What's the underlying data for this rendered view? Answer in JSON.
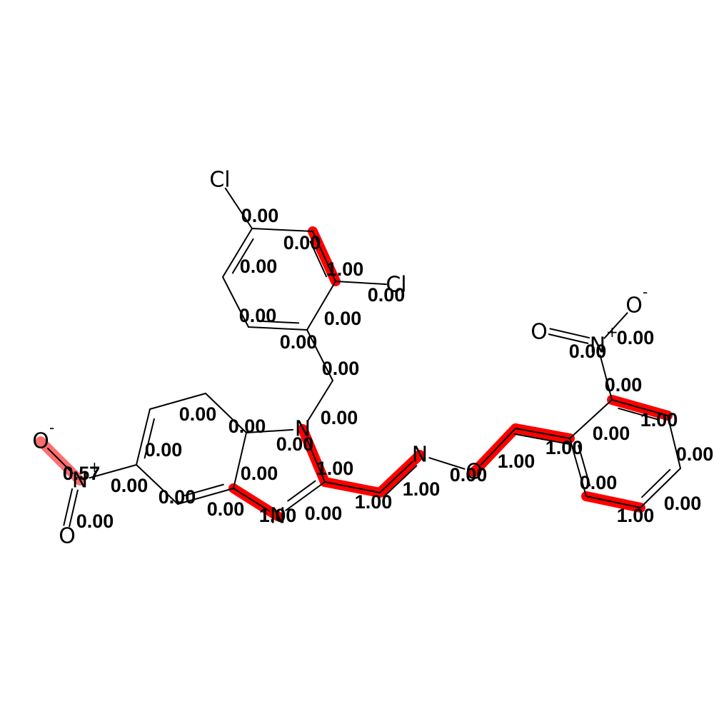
{
  "atoms": [
    {
      "id": "Cl1",
      "label": "Cl"
    },
    {
      "id": "C1",
      "label": ""
    },
    {
      "id": "C2",
      "label": ""
    },
    {
      "id": "C3",
      "label": ""
    },
    {
      "id": "Cl2",
      "label": "Cl"
    },
    {
      "id": "C4",
      "label": ""
    },
    {
      "id": "C5",
      "label": ""
    },
    {
      "id": "C6",
      "label": ""
    },
    {
      "id": "CH2",
      "label": ""
    },
    {
      "id": "N1",
      "label": "N"
    },
    {
      "id": "C7a",
      "label": ""
    },
    {
      "id": "C7",
      "label": ""
    },
    {
      "id": "C6b",
      "label": ""
    },
    {
      "id": "C5b",
      "label": ""
    },
    {
      "id": "C4b",
      "label": ""
    },
    {
      "id": "C3a",
      "label": ""
    },
    {
      "id": "N3",
      "label": "N"
    },
    {
      "id": "C2b",
      "label": ""
    },
    {
      "id": "CHb",
      "label": ""
    },
    {
      "id": "Nox",
      "label": "N"
    },
    {
      "id": "Oox",
      "label": "O"
    },
    {
      "id": "Cv1",
      "label": ""
    },
    {
      "id": "Cv2",
      "label": ""
    },
    {
      "id": "Ar1",
      "label": ""
    },
    {
      "id": "Ar2",
      "label": ""
    },
    {
      "id": "Ar3",
      "label": ""
    },
    {
      "id": "Ar4",
      "label": ""
    },
    {
      "id": "Ar5",
      "label": ""
    },
    {
      "id": "Ar6",
      "label": ""
    },
    {
      "id": "N2p",
      "label": "N",
      "charge": "+"
    },
    {
      "id": "O2a",
      "label": "O"
    },
    {
      "id": "O2b",
      "label": "O",
      "charge": "-"
    },
    {
      "id": "N5p",
      "label": "N",
      "charge": "+"
    },
    {
      "id": "O5a",
      "label": "O",
      "charge": "-"
    },
    {
      "id": "O5b",
      "label": "O"
    }
  ],
  "bonds": [
    {
      "a": "Cl1",
      "b": "C1",
      "order": 1,
      "weight": "0.00"
    },
    {
      "a": "C1",
      "b": "C2",
      "order": 1,
      "weight": "0.00"
    },
    {
      "a": "C2",
      "b": "C3",
      "order": 2,
      "weight": "1.00"
    },
    {
      "a": "C3",
      "b": "Cl2",
      "order": 1,
      "weight": "0.00"
    },
    {
      "a": "C3",
      "b": "C4",
      "order": 1,
      "weight": "0.00"
    },
    {
      "a": "C4",
      "b": "C5",
      "order": 2,
      "weight": "0.00"
    },
    {
      "a": "C5",
      "b": "C6",
      "order": 1,
      "weight": "0.00"
    },
    {
      "a": "C6",
      "b": "C1",
      "order": 2,
      "weight": "0.00"
    },
    {
      "a": "C4",
      "b": "CH2",
      "order": 1,
      "weight": "0.00"
    },
    {
      "a": "CH2",
      "b": "N1",
      "order": 1,
      "weight": "0.00"
    },
    {
      "a": "N1",
      "b": "C7a",
      "order": 1,
      "weight": "0.00"
    },
    {
      "a": "C7a",
      "b": "C7",
      "order": 1,
      "weight": "0.00"
    },
    {
      "a": "C7",
      "b": "C6b",
      "order": 1,
      "weight": "0.00"
    },
    {
      "a": "C6b",
      "b": "C5b",
      "order": 2,
      "weight": "0.00"
    },
    {
      "a": "C5b",
      "b": "C4b",
      "order": 1,
      "weight": "0.00"
    },
    {
      "a": "C4b",
      "b": "C3a",
      "order": 2,
      "weight": "0.00"
    },
    {
      "a": "C3a",
      "b": "C7a",
      "order": 1,
      "weight": "0.00"
    },
    {
      "a": "C3a",
      "b": "N3",
      "order": 1,
      "weight": "1.00"
    },
    {
      "a": "N3",
      "b": "C2b",
      "order": 2,
      "weight": "0.00"
    },
    {
      "a": "C2b",
      "b": "N1",
      "order": 1,
      "weight": "1.00"
    },
    {
      "a": "C2b",
      "b": "CHb",
      "order": 1,
      "weight": "1.00"
    },
    {
      "a": "CHb",
      "b": "Nox",
      "order": 2,
      "weight": "1.00"
    },
    {
      "a": "Nox",
      "b": "Oox",
      "order": 1,
      "weight": "0.00"
    },
    {
      "a": "Oox",
      "b": "Cv1",
      "order": 1,
      "weight": "1.00"
    },
    {
      "a": "Cv1",
      "b": "Cv2",
      "order": 2,
      "weight": "1.00"
    },
    {
      "a": "Cv2",
      "b": "Ar1",
      "order": 1,
      "weight": "1.00"
    },
    {
      "a": "Ar1",
      "b": "Ar2",
      "order": 1,
      "weight": "0.00"
    },
    {
      "a": "Ar2",
      "b": "Ar3",
      "order": 2,
      "weight": "1.00"
    },
    {
      "a": "Ar3",
      "b": "Ar4",
      "order": 1,
      "weight": "0.00"
    },
    {
      "a": "Ar4",
      "b": "Ar5",
      "order": 2,
      "weight": "0.00"
    },
    {
      "a": "Ar5",
      "b": "Ar6",
      "order": 1,
      "weight": "1.00"
    },
    {
      "a": "Ar6",
      "b": "Ar1",
      "order": 2,
      "weight": "0.00"
    },
    {
      "a": "Ar2",
      "b": "N2p",
      "order": 1,
      "weight": "0.00"
    },
    {
      "a": "N2p",
      "b": "O2a",
      "order": 2,
      "weight": "0.00"
    },
    {
      "a": "N2p",
      "b": "O2b",
      "order": 1,
      "weight": "0.00"
    },
    {
      "a": "C5b",
      "b": "N5p",
      "order": 1,
      "weight": "0.00"
    },
    {
      "a": "N5p",
      "b": "O5a",
      "order": 1,
      "weight": "0.57"
    },
    {
      "a": "N5p",
      "b": "O5b",
      "order": 2,
      "weight": "0.00"
    }
  ],
  "colors": {
    "highlight": "#ff0000",
    "bond": "#000000",
    "background": "#ffffff"
  }
}
